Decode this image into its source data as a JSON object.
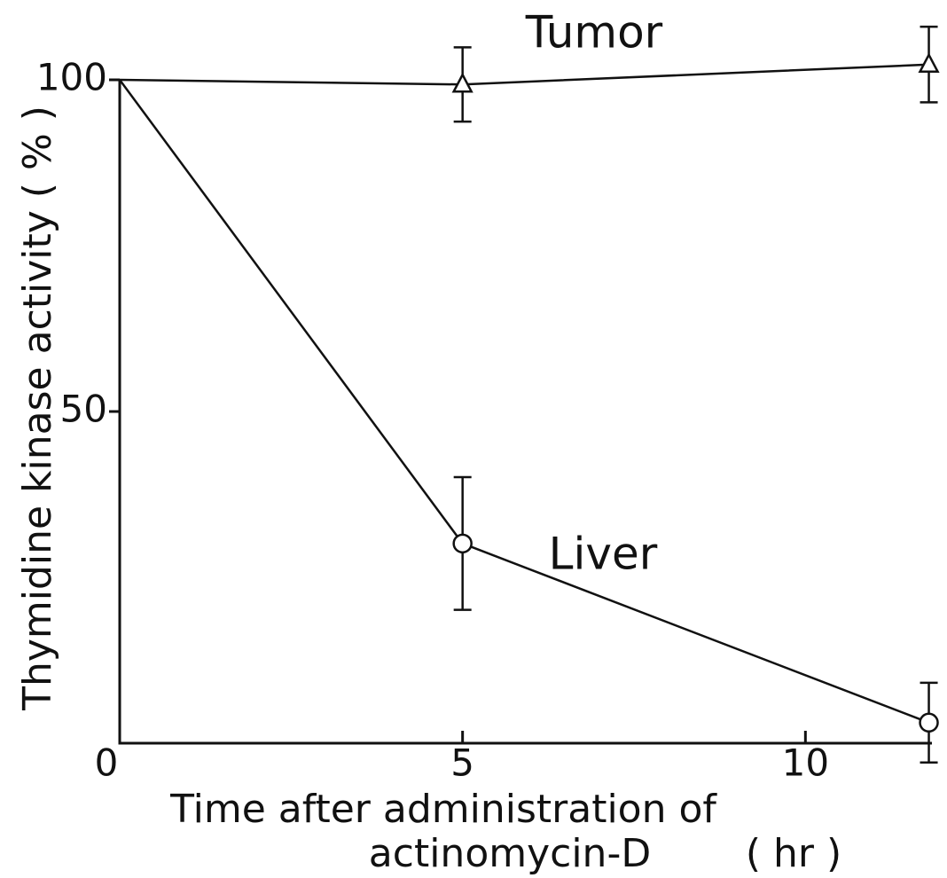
{
  "chart_data": {
    "type": "line",
    "ylabel": "Thymidine kinase activity ( % )",
    "xlabel": [
      "Time after administration of",
      "actinomycin-D",
      "( hr )"
    ],
    "x": [
      0,
      5,
      11.8
    ],
    "series": [
      {
        "name": "Tumor",
        "color": "#111111",
        "marker": "triangle",
        "values": [
          100,
          99.3,
          102.3
        ],
        "errors": [
          null,
          5.6,
          5.7
        ]
      },
      {
        "name": "Liver",
        "color": "#111111",
        "marker": "circle",
        "values": [
          100,
          30.1,
          3.1
        ],
        "errors": [
          null,
          10,
          6
        ]
      }
    ],
    "xlim": [
      0,
      12
    ],
    "xticks": [
      0,
      5,
      10
    ],
    "ylim": [
      0,
      100
    ],
    "yticks": [
      50,
      100
    ]
  }
}
